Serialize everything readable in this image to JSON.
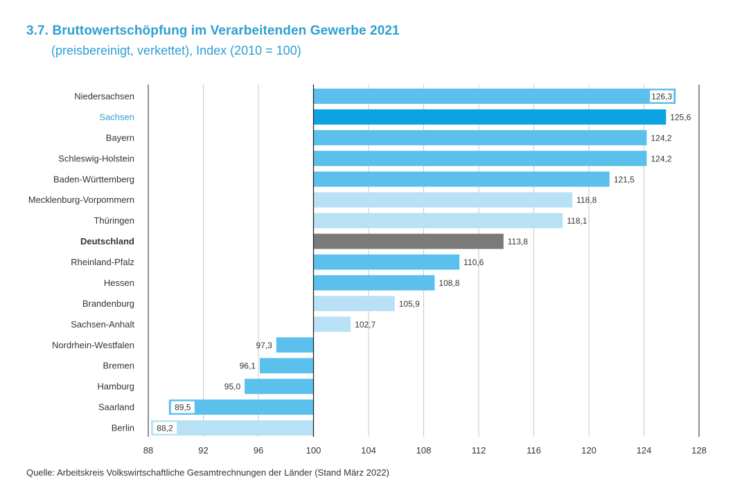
{
  "header": {
    "title": "3.7. Bruttowertschöpfung im Verarbeitenden Gewerbe 2021",
    "subtitle": "(preisbereinigt, verkettet), Index (2010 = 100)"
  },
  "footer": {
    "source": "Quelle: Arbeitskreis Volkswirtschaftliche Gesamtrechnungen der Länder (Stand März 2022)"
  },
  "colors": {
    "standard": "#5bc0eb",
    "highlight": "#0aa3e0",
    "light": "#b8e1f5",
    "national": "#7a7a7a",
    "label_highlight": "#2e9fd1"
  },
  "chart_data": {
    "type": "bar",
    "orientation": "horizontal",
    "baseline": 100,
    "xlim": [
      88,
      128
    ],
    "xticks": [
      88,
      92,
      96,
      100,
      104,
      108,
      112,
      116,
      120,
      124,
      128
    ],
    "tick_labels": [
      "88",
      "92",
      "96",
      "100",
      "104",
      "108",
      "112",
      "116",
      "120",
      "124",
      "128"
    ],
    "grid": true,
    "categories": [
      "Niedersachsen",
      "Sachsen",
      "Bayern",
      "Schleswig-Holstein",
      "Baden-Württemberg",
      "Mecklenburg-Vorpommern",
      "Thüringen",
      "Deutschland",
      "Rheinland-Pfalz",
      "Hessen",
      "Brandenburg",
      "Sachsen-Anhalt",
      "Nordrhein-Westfalen",
      "Bremen",
      "Hamburg",
      "Saarland",
      "Berlin"
    ],
    "values": [
      126.3,
      125.6,
      124.2,
      124.2,
      121.5,
      118.8,
      118.1,
      113.8,
      110.6,
      108.8,
      105.9,
      102.7,
      97.3,
      96.1,
      95.0,
      89.5,
      88.2
    ],
    "value_labels": [
      "126,3",
      "125,6",
      "124,2",
      "124,2",
      "121,5",
      "118,8",
      "118,1",
      "113,8",
      "110,6",
      "108,8",
      "105,9",
      "102,7",
      "97,3",
      "96,1",
      "95,0",
      "89,5",
      "88,2"
    ],
    "bar_colors": [
      "standard",
      "highlight",
      "standard",
      "standard",
      "standard",
      "light",
      "light",
      "national",
      "standard",
      "standard",
      "light",
      "light",
      "standard",
      "standard",
      "standard",
      "standard",
      "light"
    ],
    "label_styles": [
      "normal",
      "highlight",
      "normal",
      "normal",
      "normal",
      "normal",
      "normal",
      "bold",
      "normal",
      "normal",
      "normal",
      "normal",
      "normal",
      "normal",
      "normal",
      "normal",
      "normal"
    ],
    "boxed_labels": [
      true,
      false,
      false,
      false,
      false,
      false,
      false,
      false,
      false,
      false,
      false,
      false,
      false,
      false,
      false,
      true,
      true
    ]
  }
}
